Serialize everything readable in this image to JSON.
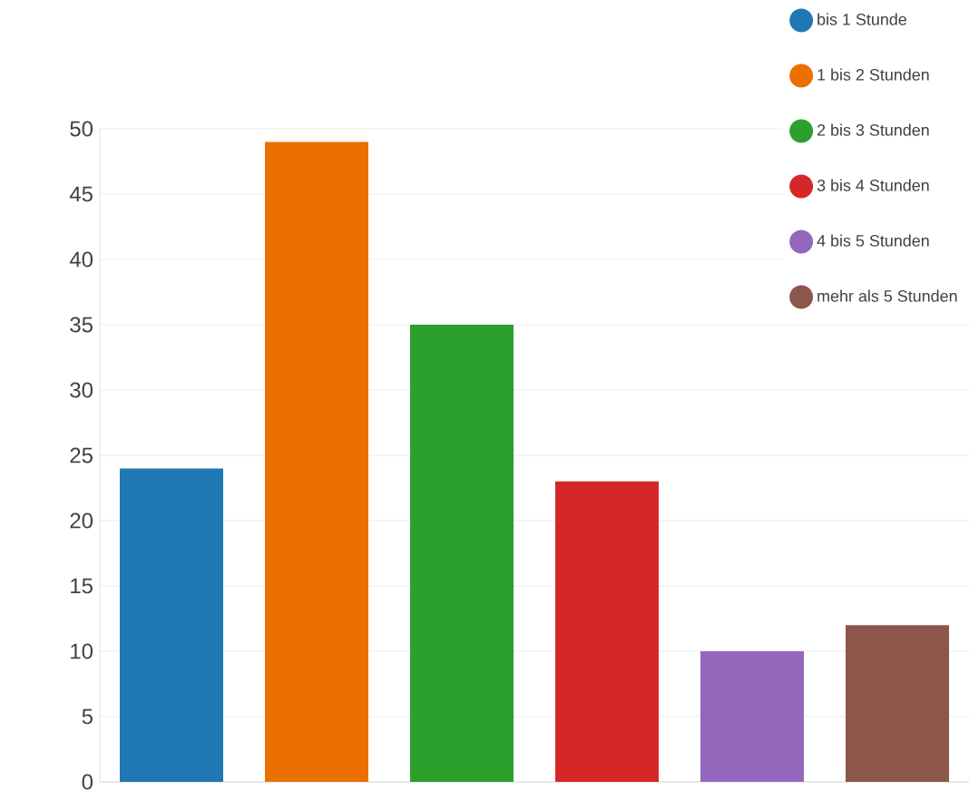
{
  "chart_data": {
    "type": "bar",
    "categories": [
      null
    ],
    "series": [
      {
        "name": "bis 1 Stunde",
        "color": "#1f77b4",
        "values": [
          24
        ]
      },
      {
        "name": "1 bis 2 Stunden",
        "color": "#ec7000",
        "values": [
          49
        ]
      },
      {
        "name": "2 bis 3 Stunden",
        "color": "#2ca02c",
        "values": [
          35
        ]
      },
      {
        "name": "3 bis 4 Stunden",
        "color": "#d62728",
        "values": [
          23
        ]
      },
      {
        "name": "4 bis 5 Stunden",
        "color": "#9467bd",
        "values": [
          10
        ]
      },
      {
        "name": "mehr als 5 Stunden",
        "color": "#8c564b",
        "values": [
          12
        ]
      }
    ],
    "ylim": [
      0,
      50
    ],
    "yticks": [
      0,
      5,
      10,
      15,
      20,
      25,
      30,
      35,
      40,
      45,
      50
    ],
    "grid": "y",
    "legend": "top right",
    "marker": "circle"
  }
}
